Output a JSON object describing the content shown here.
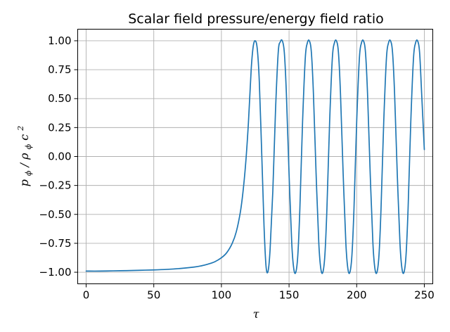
{
  "chart_data": {
    "type": "line",
    "title": "Scalar field pressure/energy field ratio",
    "xlabel": "τ",
    "ylabel_parts": {
      "p": "p",
      "phi": "ϕ",
      "slash": "/",
      "rho": "ρ",
      "c": "c",
      "exp": "2"
    },
    "xlim": [
      -6.25,
      256.25
    ],
    "ylim": [
      -1.1,
      1.1
    ],
    "x_ticks": [
      0,
      50,
      100,
      150,
      200,
      250
    ],
    "x_tick_labels": [
      "0",
      "50",
      "100",
      "150",
      "200",
      "250"
    ],
    "y_ticks": [
      1.0,
      0.75,
      0.5,
      0.25,
      0.0,
      -0.25,
      -0.5,
      -0.75,
      -1.0
    ],
    "y_tick_labels": [
      "1.00",
      "0.75",
      "0.50",
      "0.25",
      "0.00",
      "−0.25",
      "−0.50",
      "−0.75",
      "−1.00"
    ],
    "grid": true,
    "line_color": "#1f77b4",
    "series": [
      {
        "x": [
          0,
          10,
          20,
          30,
          40,
          50,
          60,
          70,
          80,
          85,
          90,
          95,
          100,
          104,
          108,
          111,
          114,
          116,
          118,
          120,
          122,
          123.5,
          125,
          126.5,
          128,
          130,
          131.5,
          133,
          134.5,
          136,
          138,
          140,
          142,
          143.5,
          145,
          146.5,
          148,
          150,
          152,
          153.5,
          155,
          156.5,
          158,
          160,
          162,
          163.5,
          165,
          166.5,
          168,
          170,
          172,
          173.5,
          175,
          176.5,
          178,
          180,
          182,
          183.5,
          185,
          186.5,
          188,
          190,
          192,
          193.5,
          195,
          196.5,
          198,
          200,
          202,
          203.5,
          205,
          206.5,
          208,
          210,
          212,
          213.5,
          215,
          216.5,
          218,
          220,
          222,
          223.5,
          225,
          226.5,
          228,
          230,
          232,
          233.5,
          235,
          236.5,
          238,
          240,
          242,
          243.5,
          245,
          246.5,
          248,
          250
        ],
        "y": [
          -0.99,
          -0.99,
          -0.988,
          -0.986,
          -0.983,
          -0.98,
          -0.975,
          -0.967,
          -0.955,
          -0.945,
          -0.93,
          -0.91,
          -0.875,
          -0.83,
          -0.75,
          -0.65,
          -0.48,
          -0.3,
          -0.05,
          0.3,
          0.75,
          0.95,
          1.0,
          0.93,
          0.65,
          -0.05,
          -0.6,
          -0.95,
          -0.99,
          -0.8,
          -0.3,
          0.4,
          0.9,
          0.99,
          1.0,
          0.9,
          0.55,
          -0.15,
          -0.75,
          -0.97,
          -1.0,
          -0.85,
          -0.45,
          0.3,
          0.85,
          0.98,
          1.0,
          0.9,
          0.55,
          -0.15,
          -0.75,
          -0.97,
          -1.0,
          -0.85,
          -0.45,
          0.3,
          0.85,
          0.98,
          1.0,
          0.9,
          0.55,
          -0.15,
          -0.75,
          -0.97,
          -1.0,
          -0.85,
          -0.45,
          0.3,
          0.85,
          0.98,
          1.0,
          0.9,
          0.55,
          -0.15,
          -0.75,
          -0.97,
          -1.0,
          -0.85,
          -0.45,
          0.3,
          0.85,
          0.98,
          1.0,
          0.9,
          0.55,
          -0.15,
          -0.75,
          -0.97,
          -1.0,
          -0.85,
          -0.45,
          0.3,
          0.85,
          0.98,
          1.0,
          0.9,
          0.55,
          0.06
        ]
      }
    ]
  }
}
